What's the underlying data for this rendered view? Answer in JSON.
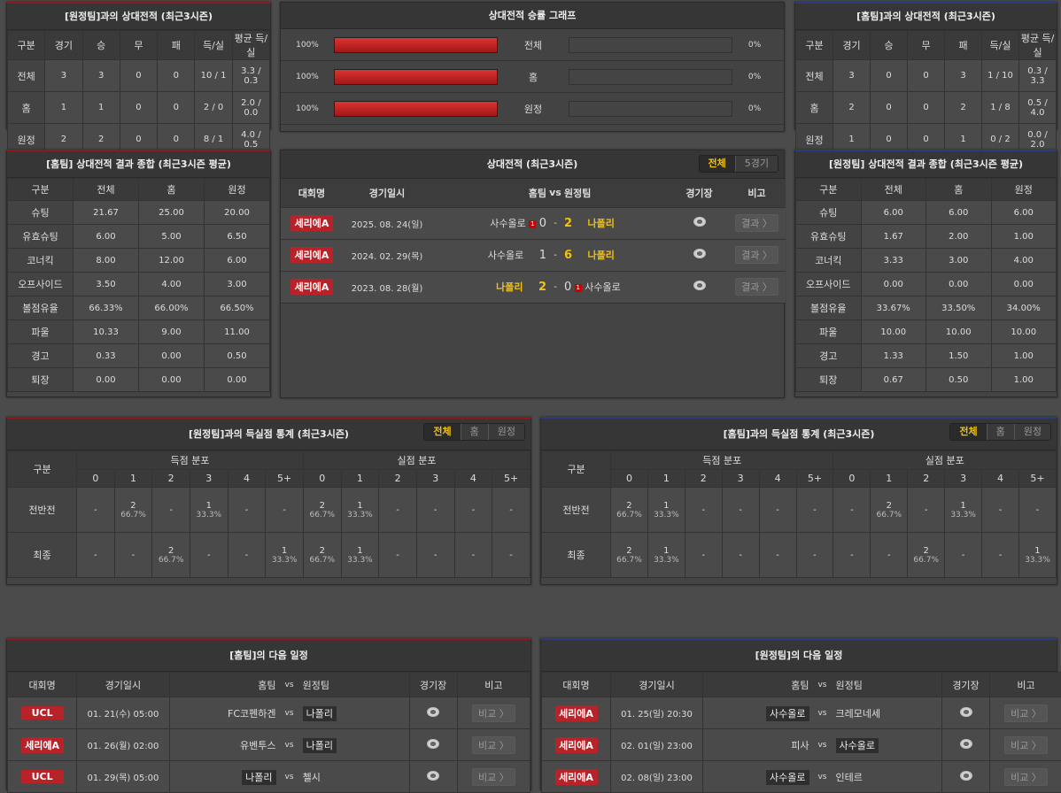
{
  "h2h_away": {
    "title": "[원정팀]과의 상대전적 (최근3시즌)",
    "headers": [
      "구분",
      "경기",
      "승",
      "무",
      "패",
      "득/실",
      "평균 득/실"
    ],
    "rows": [
      [
        "전체",
        "3",
        "3",
        "0",
        "0",
        "10 / 1",
        "3.3 / 0.3"
      ],
      [
        "홈",
        "1",
        "1",
        "0",
        "0",
        "2 / 0",
        "2.0 / 0.0"
      ],
      [
        "원정",
        "2",
        "2",
        "0",
        "0",
        "8 / 1",
        "4.0 / 0.5"
      ]
    ]
  },
  "graph": {
    "title": "상대전적 승률 그래프",
    "rows": [
      {
        "left": "100%",
        "label": "전체",
        "right": "0%",
        "home_pct": 100
      },
      {
        "left": "100%",
        "label": "홈",
        "right": "0%",
        "home_pct": 100
      },
      {
        "left": "100%",
        "label": "원정",
        "right": "0%",
        "home_pct": 100
      }
    ]
  },
  "h2h_home": {
    "title": "[홈팀]과의 상대전적 (최근3시즌)",
    "headers": [
      "구분",
      "경기",
      "승",
      "무",
      "패",
      "득/실",
      "평균 득/실"
    ],
    "rows": [
      [
        "전체",
        "3",
        "0",
        "0",
        "3",
        "1 / 10",
        "0.3 / 3.3"
      ],
      [
        "홈",
        "2",
        "0",
        "0",
        "2",
        "1 / 8",
        "0.5 / 4.0"
      ],
      [
        "원정",
        "1",
        "0",
        "0",
        "1",
        "0 / 2",
        "0.0 / 2.0"
      ]
    ]
  },
  "home_summary": {
    "title": "[홈팀] 상대전적 결과 종합 (최근3시즌 평균)",
    "headers": [
      "구분",
      "전체",
      "홈",
      "원정"
    ],
    "rows": [
      [
        "슈팅",
        "21.67",
        "25.00",
        "20.00"
      ],
      [
        "유효슈팅",
        "6.00",
        "5.00",
        "6.50"
      ],
      [
        "코너킥",
        "8.00",
        "12.00",
        "6.00"
      ],
      [
        "오프사이드",
        "3.50",
        "4.00",
        "3.00"
      ],
      [
        "볼점유율",
        "66.33%",
        "66.00%",
        "66.50%"
      ],
      [
        "파울",
        "10.33",
        "9.00",
        "11.00"
      ],
      [
        "경고",
        "0.33",
        "0.00",
        "0.50"
      ],
      [
        "퇴장",
        "0.00",
        "0.00",
        "0.00"
      ]
    ]
  },
  "away_summary": {
    "title": "[원정팀] 상대전적 결과 종합 (최근3시즌 평균)",
    "headers": [
      "구분",
      "전체",
      "홈",
      "원정"
    ],
    "rows": [
      [
        "슈팅",
        "6.00",
        "6.00",
        "6.00"
      ],
      [
        "유효슈팅",
        "1.67",
        "2.00",
        "1.00"
      ],
      [
        "코너킥",
        "3.33",
        "3.00",
        "4.00"
      ],
      [
        "오프사이드",
        "0.00",
        "0.00",
        "0.00"
      ],
      [
        "볼점유율",
        "33.67%",
        "33.50%",
        "34.00%"
      ],
      [
        "파울",
        "10.00",
        "10.00",
        "10.00"
      ],
      [
        "경고",
        "1.33",
        "1.50",
        "1.00"
      ],
      [
        "퇴장",
        "0.67",
        "0.50",
        "1.00"
      ]
    ]
  },
  "recent": {
    "title": "상대전적 (최근3시즌)",
    "tabs": [
      "전체",
      "5경기"
    ],
    "headers": [
      "대회명",
      "경기일시",
      "홈팀",
      "vs",
      "원정팀",
      "경기장",
      "비고"
    ],
    "matches": [
      {
        "league": "세리에A",
        "date": "2025. 08. 24(일)",
        "home": "사수올로",
        "home_red": "1",
        "hs": "0",
        "as": "2",
        "away": "나폴리",
        "away_red": "",
        "winner": "away",
        "btn": "결과 〉"
      },
      {
        "league": "세리에A",
        "date": "2024. 02. 29(목)",
        "home": "사수올로",
        "home_red": "",
        "hs": "1",
        "as": "6",
        "away": "나폴리",
        "away_red": "",
        "winner": "away",
        "btn": "결과 〉"
      },
      {
        "league": "세리에A",
        "date": "2023. 08. 28(월)",
        "home": "나폴리",
        "home_red": "",
        "hs": "2",
        "as": "0",
        "away": "사수올로",
        "away_red": "1",
        "winner": "home",
        "btn": "결과 〉"
      }
    ]
  },
  "goals_away": {
    "title": "[원정팀]과의 득실점 통계 (최근3시즌)",
    "tabs": [
      "전체",
      "홈",
      "원정"
    ],
    "label_header": "구분",
    "group_scored": "득점 분포",
    "group_conceded": "실점 분포",
    "cols": [
      "0",
      "1",
      "2",
      "3",
      "4",
      "5+"
    ],
    "rows": [
      {
        "label": "전반전",
        "cells": [
          [
            "-",
            ""
          ],
          [
            "2",
            "66.7%"
          ],
          [
            "-",
            ""
          ],
          [
            "1",
            "33.3%"
          ],
          [
            "-",
            ""
          ],
          [
            "-",
            ""
          ],
          [
            "2",
            "66.7%"
          ],
          [
            "1",
            "33.3%"
          ],
          [
            "-",
            ""
          ],
          [
            "-",
            ""
          ],
          [
            "-",
            ""
          ],
          [
            "-",
            ""
          ]
        ]
      },
      {
        "label": "최종",
        "cells": [
          [
            "-",
            ""
          ],
          [
            "-",
            ""
          ],
          [
            "2",
            "66.7%"
          ],
          [
            "-",
            ""
          ],
          [
            "-",
            ""
          ],
          [
            "1",
            "33.3%"
          ],
          [
            "2",
            "66.7%"
          ],
          [
            "1",
            "33.3%"
          ],
          [
            "-",
            ""
          ],
          [
            "-",
            ""
          ],
          [
            "-",
            ""
          ],
          [
            "-",
            ""
          ]
        ]
      }
    ]
  },
  "goals_home": {
    "title": "[홈팀]과의 득실점 통계 (최근3시즌)",
    "tabs": [
      "전체",
      "홈",
      "원정"
    ],
    "label_header": "구분",
    "group_scored": "득점 분포",
    "group_conceded": "실점 분포",
    "cols": [
      "0",
      "1",
      "2",
      "3",
      "4",
      "5+"
    ],
    "rows": [
      {
        "label": "전반전",
        "cells": [
          [
            "2",
            "66.7%"
          ],
          [
            "1",
            "33.3%"
          ],
          [
            "-",
            ""
          ],
          [
            "-",
            ""
          ],
          [
            "-",
            ""
          ],
          [
            "-",
            ""
          ],
          [
            "-",
            ""
          ],
          [
            "2",
            "66.7%"
          ],
          [
            "-",
            ""
          ],
          [
            "1",
            "33.3%"
          ],
          [
            "-",
            ""
          ],
          [
            "-",
            ""
          ]
        ]
      },
      {
        "label": "최종",
        "cells": [
          [
            "2",
            "66.7%"
          ],
          [
            "1",
            "33.3%"
          ],
          [
            "-",
            ""
          ],
          [
            "-",
            ""
          ],
          [
            "-",
            ""
          ],
          [
            "-",
            ""
          ],
          [
            "-",
            ""
          ],
          [
            "-",
            ""
          ],
          [
            "2",
            "66.7%"
          ],
          [
            "-",
            ""
          ],
          [
            "-",
            ""
          ],
          [
            "1",
            "33.3%"
          ]
        ]
      }
    ]
  },
  "sched_home": {
    "title": "[홈팀]의 다음 일정",
    "headers": [
      "대회명",
      "경기일시",
      "홈팀",
      "vs",
      "원정팀",
      "경기장",
      "비고"
    ],
    "matches": [
      {
        "league": "UCL",
        "date": "01. 21(수) 05:00",
        "home": "FC코펜하겐",
        "away": "나폴리",
        "hl": "away",
        "btn": "비교 〉"
      },
      {
        "league": "세리에A",
        "date": "01. 26(월) 02:00",
        "home": "유벤투스",
        "away": "나폴리",
        "hl": "away",
        "btn": "비교 〉"
      },
      {
        "league": "UCL",
        "date": "01. 29(목) 05:00",
        "home": "나폴리",
        "away": "첼시",
        "hl": "home",
        "btn": "비교 〉"
      }
    ]
  },
  "sched_away": {
    "title": "[원정팀]의 다음 일정",
    "headers": [
      "대회명",
      "경기일시",
      "홈팀",
      "vs",
      "원정팀",
      "경기장",
      "비고"
    ],
    "matches": [
      {
        "league": "세리에A",
        "date": "01. 25(일) 20:30",
        "home": "사수올로",
        "away": "크레모네세",
        "hl": "home",
        "btn": "비교 〉"
      },
      {
        "league": "세리에A",
        "date": "02. 01(일) 23:00",
        "home": "피사",
        "away": "사수올로",
        "hl": "away",
        "btn": "비교 〉"
      },
      {
        "league": "세리에A",
        "date": "02. 08(일) 23:00",
        "home": "사수올로",
        "away": "인테르",
        "hl": "home",
        "btn": "비교 〉"
      }
    ]
  },
  "colors": {
    "accent_red": "#b8232a",
    "highlight": "#f3c10e",
    "blue_border": "#2a3d7a"
  }
}
